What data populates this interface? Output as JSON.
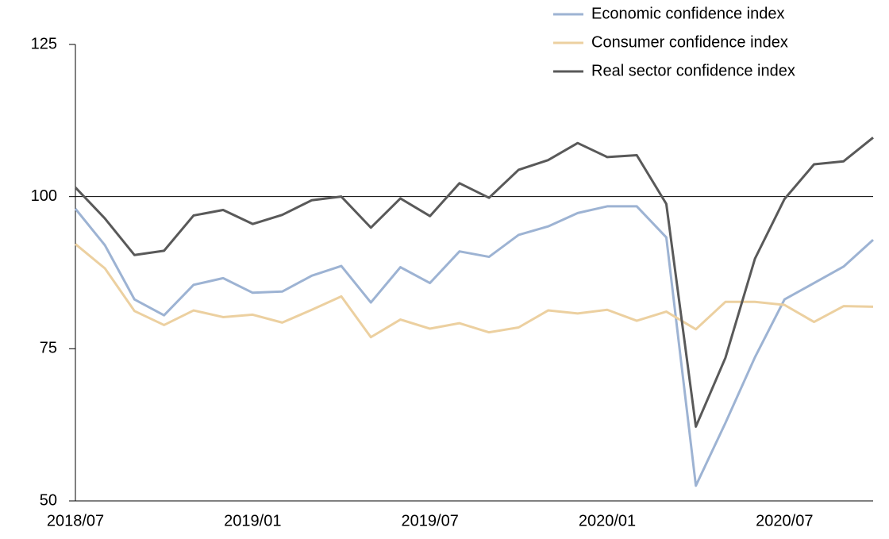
{
  "chart_data": {
    "type": "line",
    "categories": [
      "2018/07",
      null,
      null,
      null,
      null,
      null,
      "2019/01",
      null,
      null,
      null,
      null,
      null,
      "2019/07",
      null,
      null,
      null,
      null,
      null,
      "2020/01",
      null,
      null,
      null,
      null,
      null,
      "2020/07",
      null,
      null,
      null
    ],
    "series": [
      {
        "name": "Economic confidence index",
        "color": "#9db3d3",
        "values": [
          98,
          92,
          83.1,
          80.5,
          85.5,
          86.6,
          84.2,
          84.4,
          87,
          88.6,
          82.6,
          88.4,
          85.8,
          91,
          90.1,
          93.7,
          95.1,
          97.3,
          98.4,
          98.4,
          93.3,
          52.5,
          62.8,
          73.6,
          83.1,
          85.8,
          88.5,
          92.9
        ]
      },
      {
        "name": "Consumer confidence index",
        "color": "#ecd0a0",
        "values": [
          92.2,
          88.2,
          81.2,
          78.9,
          81.3,
          80.2,
          80.6,
          79.3,
          81.4,
          83.6,
          76.9,
          79.8,
          78.3,
          79.2,
          77.7,
          78.5,
          81.3,
          80.8,
          81.4,
          79.6,
          81.1,
          78.2,
          82.7,
          82.7,
          82.2,
          79.4,
          82,
          81.9
        ]
      },
      {
        "name": "Real sector confidence index",
        "color": "#595959",
        "values": [
          101.5,
          96.4,
          90.4,
          91.1,
          96.9,
          97.8,
          95.5,
          97,
          99.4,
          100,
          94.9,
          99.7,
          96.8,
          102.2,
          99.8,
          104.4,
          106,
          108.8,
          106.5,
          106.8,
          98.8,
          62.2,
          73.5,
          89.8,
          99.6,
          105.3,
          105.8,
          109.7
        ]
      }
    ],
    "ylim": [
      50,
      125
    ],
    "yticks": [
      50,
      75,
      100,
      125
    ],
    "reference_line": 100,
    "legend": "top-right"
  }
}
